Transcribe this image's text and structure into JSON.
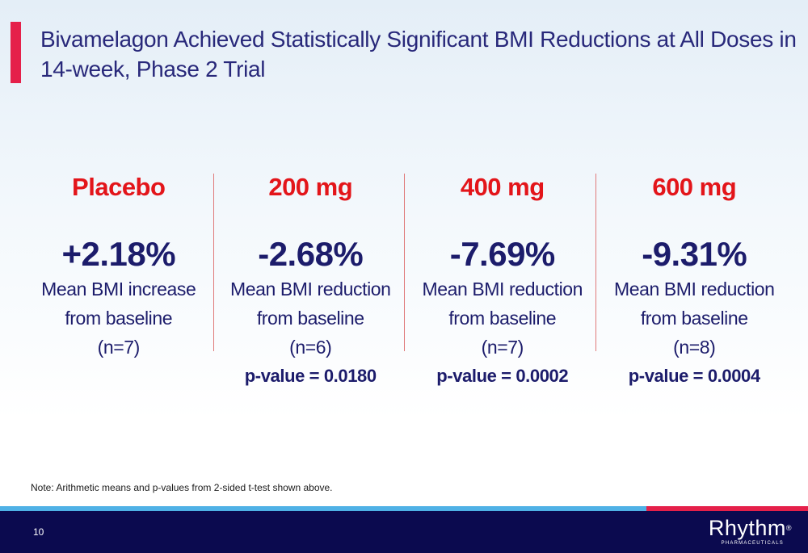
{
  "title": "Bivamelagon Achieved Statistically Significant BMI Reductions at All Doses in 14-week, Phase 2 Trial",
  "colors": {
    "accent_red": "#e5204a",
    "dose_red": "#e3151a",
    "navy": "#1c1c6b",
    "footer_navy": "#0b0a4f",
    "stripe_blue": "#4fb1e6"
  },
  "groups": [
    {
      "dose": "Placebo",
      "change": "+2.18%",
      "desc_line1": "Mean BMI increase",
      "desc_line2": "from baseline",
      "n": "(n=7)",
      "pvalue": ""
    },
    {
      "dose": "200 mg",
      "change": "-2.68%",
      "desc_line1": "Mean BMI reduction",
      "desc_line2": "from baseline",
      "n": "(n=6)",
      "pvalue": "p-value = 0.0180"
    },
    {
      "dose": "400 mg",
      "change": "-7.69%",
      "desc_line1": "Mean BMI reduction",
      "desc_line2": "from baseline",
      "n": "(n=7)",
      "pvalue": "p-value = 0.0002"
    },
    {
      "dose": "600 mg",
      "change": "-9.31%",
      "desc_line1": "Mean BMI reduction",
      "desc_line2": "from baseline",
      "n": "(n=8)",
      "pvalue": "p-value = 0.0004"
    }
  ],
  "note": "Note: Arithmetic means and p-values from 2-sided t-test shown above.",
  "footer": {
    "page_number": "10",
    "logo_text": "Rhythm",
    "logo_mark": "®",
    "logo_subtext": "PHARMACEUTICALS"
  }
}
